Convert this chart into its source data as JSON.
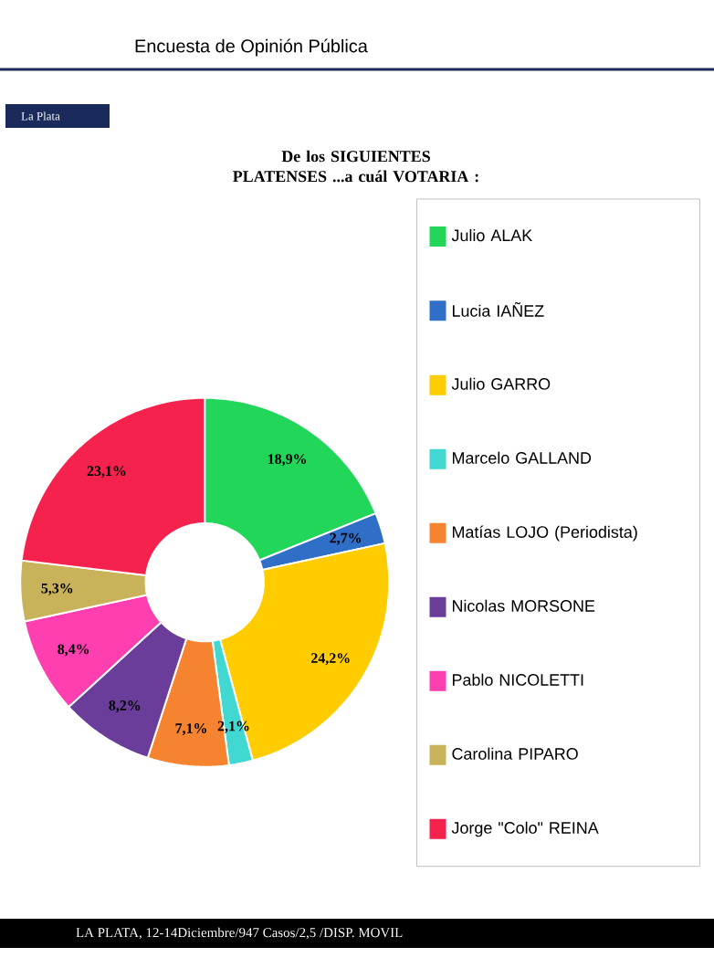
{
  "chart_data": {
    "type": "donut",
    "title": "De los SIGUIENTES PLATENSES ...a cuál VOTARIA :",
    "categories": [
      "Julio ALAK",
      "Lucia IAÑEZ",
      "Julio GARRO",
      "Marcelo GALLAND",
      "Matías LOJO (Periodista)",
      "Nicolas MORSONE",
      "Pablo NICOLETTI",
      "Carolina PIPARO",
      "Jorge \"Colo\" REINA"
    ],
    "values": [
      18.9,
      2.7,
      24.2,
      2.1,
      7.1,
      8.2,
      8.4,
      5.3,
      23.1
    ],
    "value_labels": [
      "18,9%",
      "2,7%",
      "24,2%",
      "2,1%",
      "7,1%",
      "8,2%",
      "8,4%",
      "5,3%",
      "23,1%"
    ],
    "colors": [
      "#22d65a",
      "#2f6fc8",
      "#ffcc00",
      "#40d8d0",
      "#f58330",
      "#6a3d9a",
      "#ff3fb0",
      "#c9b35a",
      "#f5224d"
    ],
    "legend": "right",
    "annotations": [
      "Encuesta de Opinión Pública",
      "La Plata",
      "LA PLATA, 12-14Diciembre/947 Casos/2,5 /DISP. MOVIL"
    ]
  }
}
